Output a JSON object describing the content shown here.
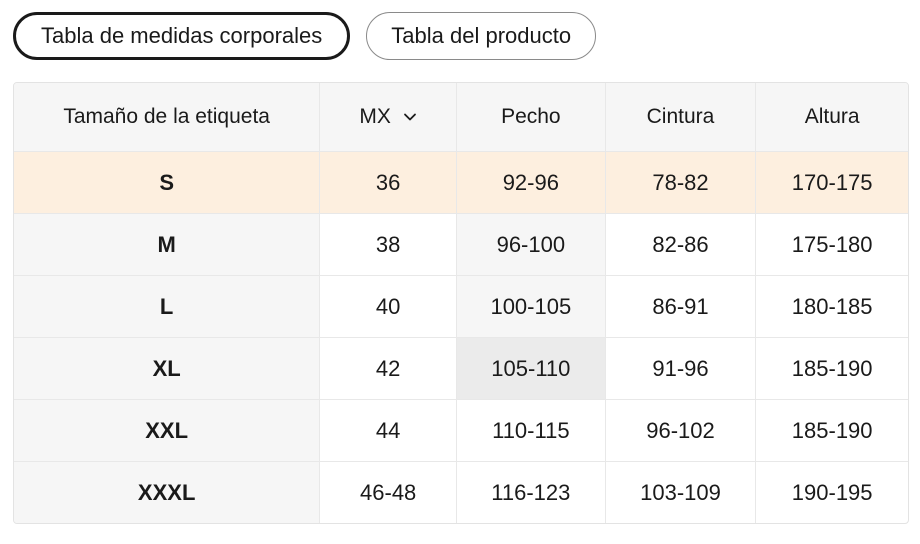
{
  "tabs": [
    {
      "label": "Tabla de medidas corporales",
      "active": true
    },
    {
      "label": "Tabla del producto",
      "active": false
    }
  ],
  "table": {
    "headers": {
      "size_label": "Tamaño de la etiqueta",
      "region_select": "MX",
      "chest": "Pecho",
      "waist": "Cintura",
      "height": "Altura"
    },
    "rows": [
      {
        "size": "S",
        "mx": "36",
        "chest": "92-96",
        "waist": "78-82",
        "height": "170-175"
      },
      {
        "size": "M",
        "mx": "38",
        "chest": "96-100",
        "waist": "82-86",
        "height": "175-180"
      },
      {
        "size": "L",
        "mx": "40",
        "chest": "100-105",
        "waist": "86-91",
        "height": "180-185"
      },
      {
        "size": "XL",
        "mx": "42",
        "chest": "105-110",
        "waist": "91-96",
        "height": "185-190"
      },
      {
        "size": "XXL",
        "mx": "44",
        "chest": "110-115",
        "waist": "96-102",
        "height": "185-190"
      },
      {
        "size": "XXXL",
        "mx": "46-48",
        "chest": "116-123",
        "waist": "103-109",
        "height": "190-195"
      }
    ]
  },
  "colors": {
    "highlight_row": "#fdefdf",
    "header_bg": "#f6f6f6",
    "hover_cell": "#ebebeb"
  },
  "icons": {
    "region_select": "chevron-down-icon"
  }
}
